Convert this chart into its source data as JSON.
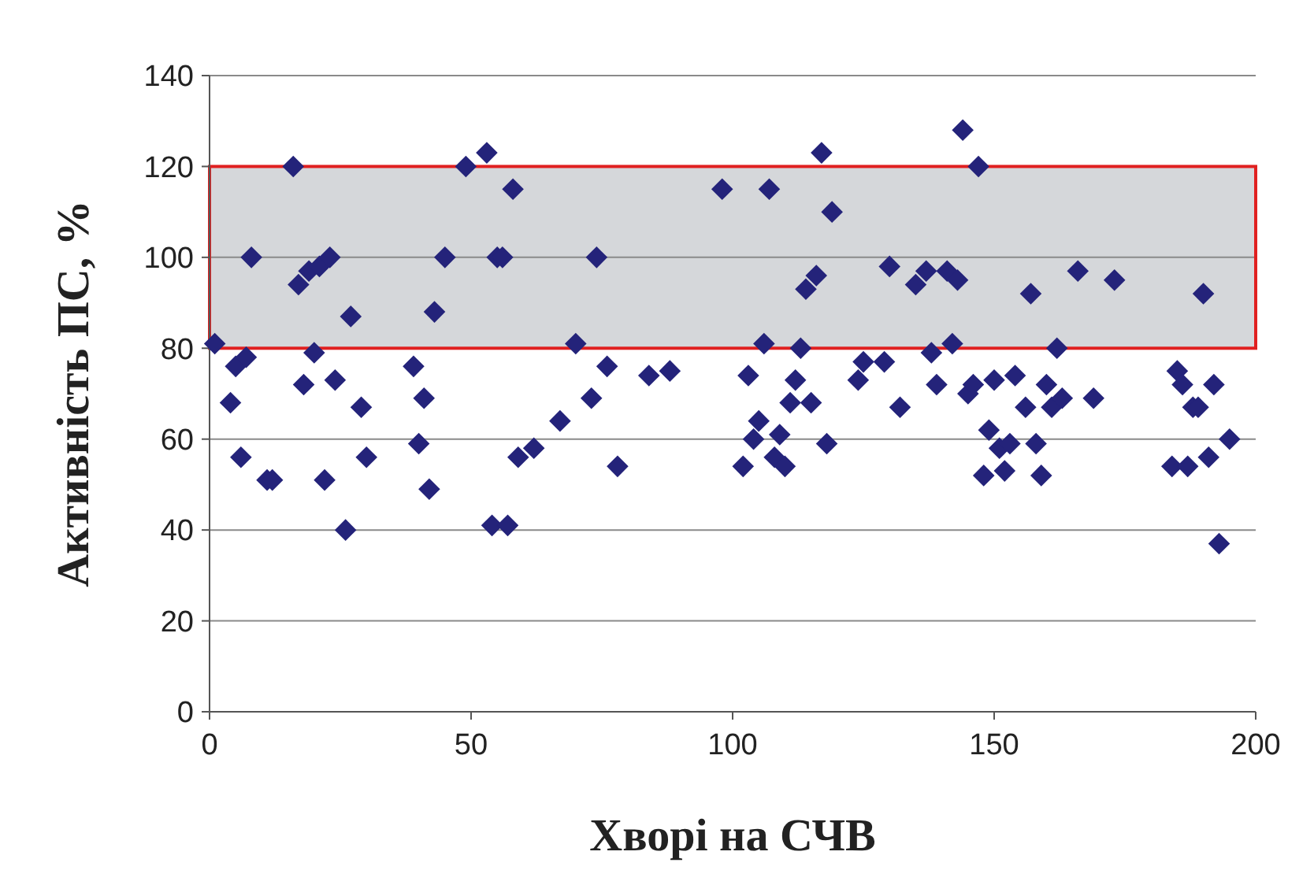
{
  "chart_data": {
    "type": "scatter",
    "xlabel": "Хворі на СЧВ",
    "ylabel": "Активність ПС, %",
    "marker": "diamond",
    "grid": "y",
    "xlim": [
      0,
      200
    ],
    "xticks": [
      0,
      50,
      100,
      150,
      200
    ],
    "ylim": [
      0,
      140
    ],
    "yticks": [
      0,
      20,
      40,
      60,
      80,
      100,
      120,
      140
    ],
    "bands": [
      {
        "axis": "y",
        "from": 80,
        "to": 120,
        "color": "#d5d7da"
      }
    ],
    "series": [
      {
        "color": "#24237a",
        "x": [
          1,
          4,
          5,
          6,
          7,
          8,
          11,
          12,
          16,
          17,
          18,
          19,
          20,
          21,
          22,
          23,
          24,
          26,
          27,
          29,
          30,
          39,
          40,
          41,
          42,
          43,
          45,
          49,
          53,
          54,
          55,
          56,
          57,
          58,
          59,
          62,
          67,
          70,
          73,
          74,
          76,
          78,
          84,
          88,
          98,
          102,
          103,
          104,
          105,
          106,
          107,
          108,
          109,
          110,
          111,
          112,
          113,
          114,
          115,
          116,
          117,
          118,
          119,
          124,
          125,
          129,
          130,
          132,
          135,
          137,
          138,
          139,
          141,
          142,
          143,
          144,
          145,
          146,
          147,
          148,
          149,
          150,
          151,
          152,
          153,
          154,
          156,
          157,
          158,
          159,
          160,
          161,
          162,
          163,
          166,
          169,
          173,
          184,
          185,
          186,
          187,
          188,
          189,
          190,
          191,
          192,
          193,
          195
        ],
        "values": [
          81,
          68,
          76,
          56,
          78,
          100,
          51,
          51,
          120,
          94,
          72,
          97,
          79,
          98,
          51,
          100,
          73,
          40,
          87,
          67,
          56,
          76,
          59,
          69,
          49,
          88,
          100,
          120,
          123,
          41,
          100,
          100,
          41,
          115,
          56,
          58,
          64,
          81,
          69,
          100,
          76,
          54,
          74,
          75,
          115,
          54,
          74,
          60,
          64,
          81,
          115,
          56,
          61,
          54,
          68,
          73,
          80,
          93,
          68,
          96,
          123,
          59,
          110,
          73,
          77,
          77,
          98,
          67,
          94,
          97,
          79,
          72,
          97,
          81,
          95,
          128,
          70,
          72,
          120,
          52,
          62,
          73,
          58,
          53,
          59,
          74,
          67,
          92,
          59,
          52,
          72,
          67,
          80,
          69,
          97,
          69,
          95,
          54,
          75,
          72,
          54,
          67,
          67,
          92,
          56,
          72,
          37,
          60
        ]
      }
    ]
  }
}
